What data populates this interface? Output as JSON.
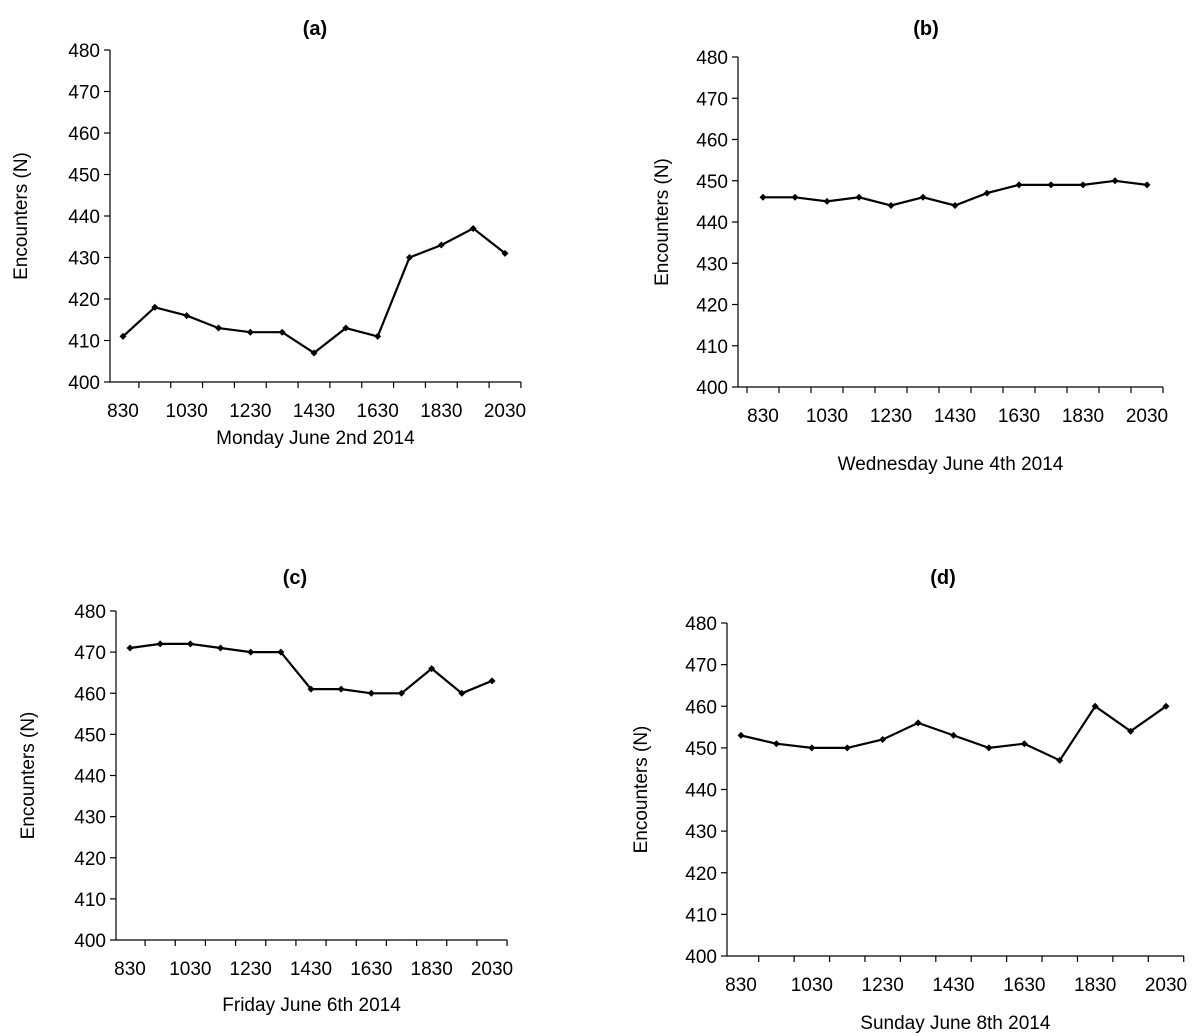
{
  "chart_data": [
    {
      "type": "line",
      "title": "(a)",
      "xlabel": "Monday June 2nd 2014",
      "ylabel": "Encounters (N)",
      "x": [
        "830",
        "930",
        "1030",
        "1130",
        "1230",
        "1330",
        "1430",
        "1530",
        "1630",
        "1730",
        "1830",
        "1930",
        "2030"
      ],
      "x_tick_labels": [
        "830",
        "1030",
        "1230",
        "1430",
        "1630",
        "1830",
        "2030"
      ],
      "y_ticks": [
        400,
        410,
        420,
        430,
        440,
        450,
        460,
        470,
        480
      ],
      "ylim": [
        400,
        480
      ],
      "grid": false,
      "series": [
        {
          "values": [
            411,
            418,
            416,
            413,
            412,
            412,
            407,
            413,
            411,
            430,
            433,
            437,
            431
          ]
        }
      ]
    },
    {
      "type": "line",
      "title": "(b)",
      "xlabel": "Wednesday June 4th 2014",
      "ylabel": "Encounters (N)",
      "x": [
        "830",
        "930",
        "1030",
        "1130",
        "1230",
        "1330",
        "1430",
        "1530",
        "1630",
        "1730",
        "1830",
        "1930",
        "2030"
      ],
      "x_tick_labels": [
        "830",
        "1030",
        "1230",
        "1430",
        "1630",
        "1830",
        "2030"
      ],
      "y_ticks": [
        400,
        410,
        420,
        430,
        440,
        450,
        460,
        470,
        480
      ],
      "ylim": [
        400,
        480
      ],
      "grid": false,
      "series": [
        {
          "values": [
            446,
            446,
            445,
            446,
            444,
            446,
            444,
            447,
            449,
            449,
            449,
            450,
            449
          ]
        }
      ]
    },
    {
      "type": "line",
      "title": "(c)",
      "xlabel": "Friday June 6th 2014",
      "ylabel": "Encounters (N)",
      "x": [
        "830",
        "930",
        "1030",
        "1130",
        "1230",
        "1330",
        "1430",
        "1530",
        "1630",
        "1730",
        "1830",
        "1930",
        "2030"
      ],
      "x_tick_labels": [
        "830",
        "1030",
        "1230",
        "1430",
        "1630",
        "1830",
        "2030"
      ],
      "y_ticks": [
        400,
        410,
        420,
        430,
        440,
        450,
        460,
        470,
        480
      ],
      "ylim": [
        400,
        480
      ],
      "grid": false,
      "series": [
        {
          "values": [
            471,
            472,
            472,
            471,
            470,
            470,
            461,
            461,
            460,
            460,
            466,
            460,
            463
          ]
        }
      ]
    },
    {
      "type": "line",
      "title": "(d)",
      "xlabel": "Sunday June 8th 2014",
      "ylabel": "Encounters (N)",
      "x": [
        "830",
        "930",
        "1030",
        "1130",
        "1230",
        "1330",
        "1430",
        "1530",
        "1630",
        "1730",
        "1830",
        "1930",
        "2030"
      ],
      "x_tick_labels": [
        "830",
        "1030",
        "1230",
        "1430",
        "1630",
        "1830",
        "2030"
      ],
      "y_ticks": [
        400,
        410,
        420,
        430,
        440,
        450,
        460,
        470,
        480
      ],
      "ylim": [
        400,
        480
      ],
      "grid": false,
      "series": [
        {
          "values": [
            453,
            451,
            450,
            450,
            452,
            456,
            453,
            450,
            451,
            447,
            460,
            454,
            460
          ]
        }
      ]
    }
  ]
}
